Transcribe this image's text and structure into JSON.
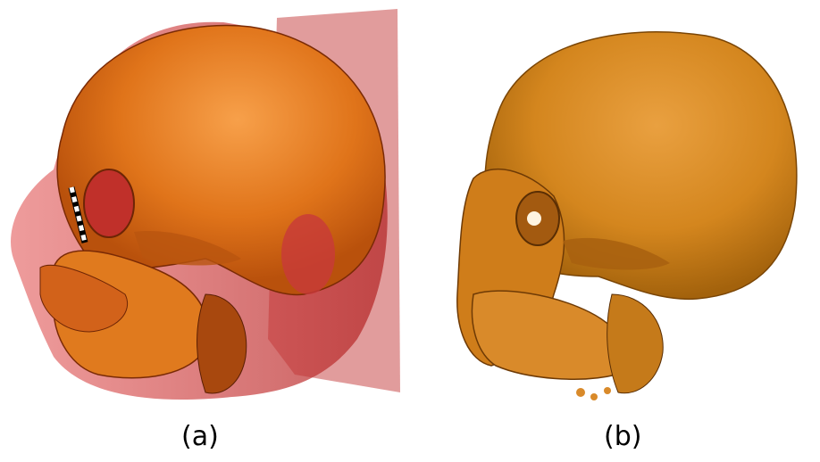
{
  "figure": {
    "panels": [
      {
        "id": "a",
        "caption": "(a)",
        "description_icon": "skull-volume-render-with-skin-icon"
      },
      {
        "id": "b",
        "caption": "(b)",
        "description_icon": "skull-volume-render-bone-icon"
      }
    ],
    "colors": {
      "bone_orange": "#e07a1e",
      "bone_dark": "#8a3a08",
      "skin_red": "#c23a3a",
      "bone_b": "#d98a2a"
    }
  }
}
